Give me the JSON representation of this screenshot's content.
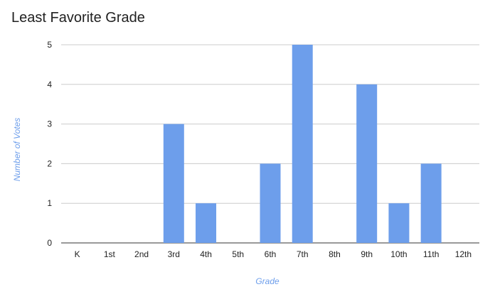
{
  "chart_data": {
    "type": "bar",
    "title": "Least Favorite Grade",
    "xlabel": "Grade",
    "ylabel": "Number of Votes",
    "categories": [
      "K",
      "1st",
      "2nd",
      "3rd",
      "4th",
      "5th",
      "6th",
      "7th",
      "8th",
      "9th",
      "10th",
      "11th",
      "12th"
    ],
    "values": [
      0,
      0,
      0,
      3,
      1,
      0,
      2,
      5,
      0,
      4,
      1,
      2,
      0
    ],
    "ylim": [
      0,
      5
    ],
    "yticks": [
      0,
      1,
      2,
      3,
      4,
      5
    ],
    "grid": true,
    "legend": "none",
    "colors": {
      "bar": "#6d9eeb",
      "axis_title": "#6d9eeb",
      "grid": "#cccccc",
      "baseline": "#333333",
      "text": "#222222"
    }
  }
}
